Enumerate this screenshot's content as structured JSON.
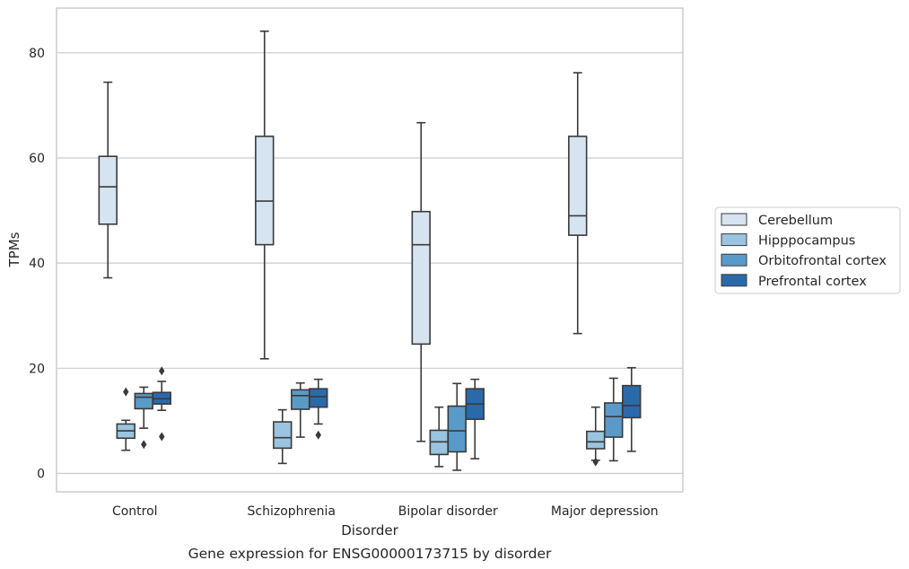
{
  "caption": "Gene expression for ENSG00000173715 by disorder",
  "chart_data": {
    "type": "box",
    "title": "",
    "xlabel": "Disorder",
    "ylabel": "TPMs",
    "ylim": [
      -3.5,
      88.5
    ],
    "yticks": [
      0,
      20,
      40,
      60,
      80
    ],
    "grid": true,
    "legend_position": "right, outside",
    "categories": [
      "Control",
      "Schizophrenia",
      "Bipolar disorder",
      "Major depression"
    ],
    "series": [
      {
        "name": "Cerebellum",
        "color": "#d6e4f1",
        "boxes": [
          {
            "whislo": 37.2,
            "q1": 47.4,
            "med": 54.5,
            "q3": 60.3,
            "whishi": 74.4,
            "fliers": []
          },
          {
            "whislo": 21.8,
            "q1": 43.5,
            "med": 51.8,
            "q3": 64.1,
            "whishi": 84.1,
            "fliers": []
          },
          {
            "whislo": 6.1,
            "q1": 24.6,
            "med": 43.5,
            "q3": 49.8,
            "whishi": 66.7,
            "fliers": []
          },
          {
            "whislo": 26.6,
            "q1": 45.3,
            "med": 49.0,
            "q3": 64.1,
            "whishi": 76.2,
            "fliers": []
          }
        ]
      },
      {
        "name": "Hipppocampus",
        "color": "#9ac4df",
        "boxes": [
          {
            "whislo": 4.4,
            "q1": 6.7,
            "med": 8.1,
            "q3": 9.4,
            "whishi": 10.1,
            "fliers": [
              15.5
            ]
          },
          {
            "whislo": 1.9,
            "q1": 4.8,
            "med": 6.8,
            "q3": 9.8,
            "whishi": 12.1,
            "fliers": []
          },
          {
            "whislo": 1.3,
            "q1": 3.6,
            "med": 6.0,
            "q3": 8.2,
            "whishi": 12.6,
            "fliers": []
          },
          {
            "whislo": 2.5,
            "q1": 4.7,
            "med": 6.0,
            "q3": 8.0,
            "whishi": 12.6,
            "fliers": [
              2.2
            ]
          }
        ]
      },
      {
        "name": "Orbitofrontal cortex",
        "color": "#5a9ac8",
        "boxes": [
          {
            "whislo": 8.6,
            "q1": 12.3,
            "med": 14.5,
            "q3": 15.2,
            "whishi": 16.4,
            "fliers": [
              5.5
            ]
          },
          {
            "whislo": 6.9,
            "q1": 12.2,
            "med": 14.8,
            "q3": 15.9,
            "whishi": 17.2,
            "fliers": []
          },
          {
            "whislo": 0.6,
            "q1": 4.1,
            "med": 8.1,
            "q3": 12.8,
            "whishi": 17.1,
            "fliers": []
          },
          {
            "whislo": 2.4,
            "q1": 6.9,
            "med": 10.8,
            "q3": 13.4,
            "whishi": 18.1,
            "fliers": []
          }
        ]
      },
      {
        "name": "Prefrontal cortex",
        "color": "#2a6aaa",
        "boxes": [
          {
            "whislo": 12.0,
            "q1": 13.2,
            "med": 14.2,
            "q3": 15.4,
            "whishi": 17.5,
            "fliers": [
              19.5,
              7.0
            ]
          },
          {
            "whislo": 9.4,
            "q1": 12.6,
            "med": 14.6,
            "q3": 16.1,
            "whishi": 17.9,
            "fliers": [
              7.3
            ]
          },
          {
            "whislo": 2.8,
            "q1": 10.3,
            "med": 13.2,
            "q3": 16.1,
            "whishi": 17.9,
            "fliers": []
          },
          {
            "whislo": 4.2,
            "q1": 10.6,
            "med": 12.9,
            "q3": 16.7,
            "whishi": 20.1,
            "fliers": []
          }
        ]
      }
    ]
  }
}
